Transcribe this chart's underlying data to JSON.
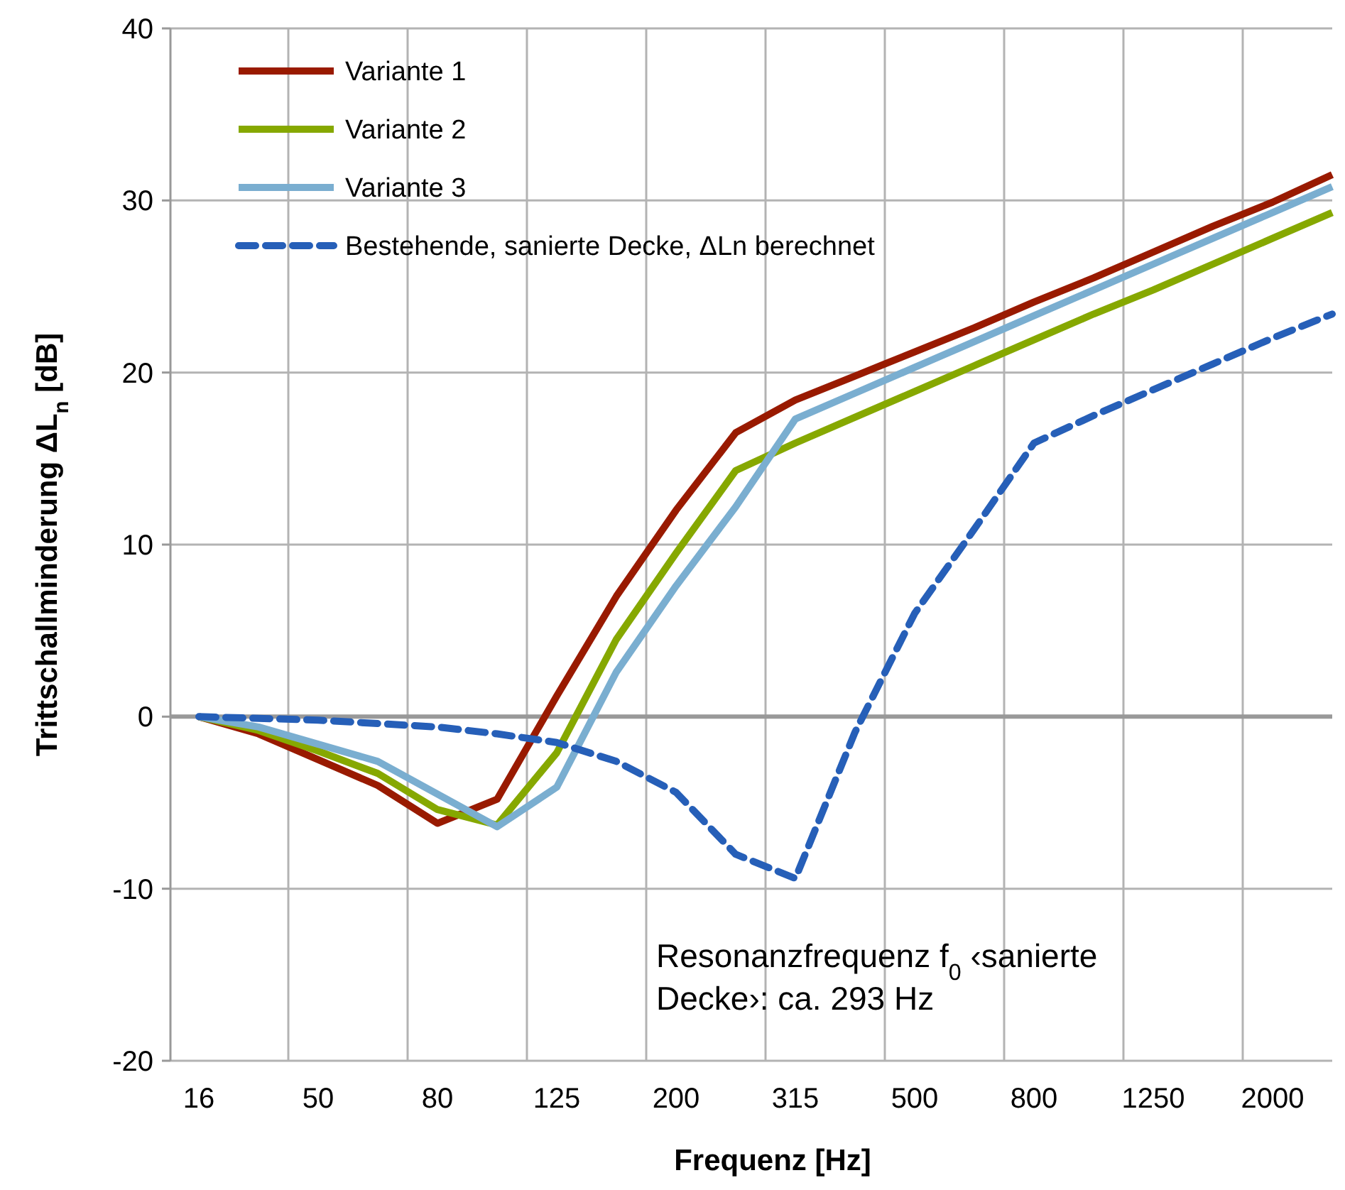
{
  "chart_data": {
    "type": "line",
    "xlabel": "Frequenz [Hz]",
    "ylabel": "Trittschallminderung ΔL$_{n}$ [dB]",
    "categories": [
      "16",
      null,
      "50",
      null,
      "80",
      null,
      "125",
      null,
      "200",
      null,
      "315",
      null,
      "500",
      null,
      "800",
      null,
      "1250",
      null,
      "2000",
      null
    ],
    "series": [
      {
        "name": "Variante 1",
        "color": "#991a00",
        "values": [
          0,
          -1.0,
          -2.5,
          -4.0,
          -6.2,
          -4.8,
          1.2,
          7.0,
          12.0,
          16.5,
          18.4,
          19.8,
          21.2,
          22.6,
          24.1,
          25.5,
          27.0,
          28.5,
          29.9,
          31.5
        ]
      },
      {
        "name": "Variante 2",
        "color": "#86a800",
        "values": [
          0,
          -0.8,
          -2.0,
          -3.3,
          -5.4,
          -6.3,
          -2.1,
          4.5,
          9.5,
          14.3,
          15.9,
          17.4,
          18.9,
          20.4,
          21.9,
          23.4,
          24.8,
          26.3,
          27.8,
          29.3
        ]
      },
      {
        "name": "Variante 3",
        "color": "#7aaed0",
        "values": [
          0,
          -0.6,
          -1.6,
          -2.6,
          -4.5,
          -6.4,
          -4.1,
          2.6,
          7.6,
          12.2,
          17.3,
          18.8,
          20.3,
          21.8,
          23.3,
          24.8,
          26.3,
          27.8,
          29.3,
          30.8
        ]
      },
      {
        "name": "Bestehende, sanierte Decke, ΔLn berechnet",
        "color": "#265fb8",
        "line_style": "dashed",
        "values": [
          0,
          -0.1,
          -0.2,
          -0.4,
          -0.6,
          -1.0,
          -1.5,
          -2.6,
          -4.4,
          -8.0,
          -9.4,
          -0.9,
          6.0,
          10.9,
          15.9,
          17.5,
          19.0,
          20.5,
          22.0,
          23.4
        ]
      }
    ],
    "ylim": [
      -20,
      40
    ],
    "yticks": [
      -20,
      -10,
      0,
      10,
      20,
      30,
      40
    ],
    "grid": true,
    "legend": "top left",
    "marker": "none",
    "line_style": "solid",
    "annotations": [
      "Resonanzfrequenz f$_{0}$ ‹sanierte Decke›:  ca. 293 Hz"
    ]
  }
}
